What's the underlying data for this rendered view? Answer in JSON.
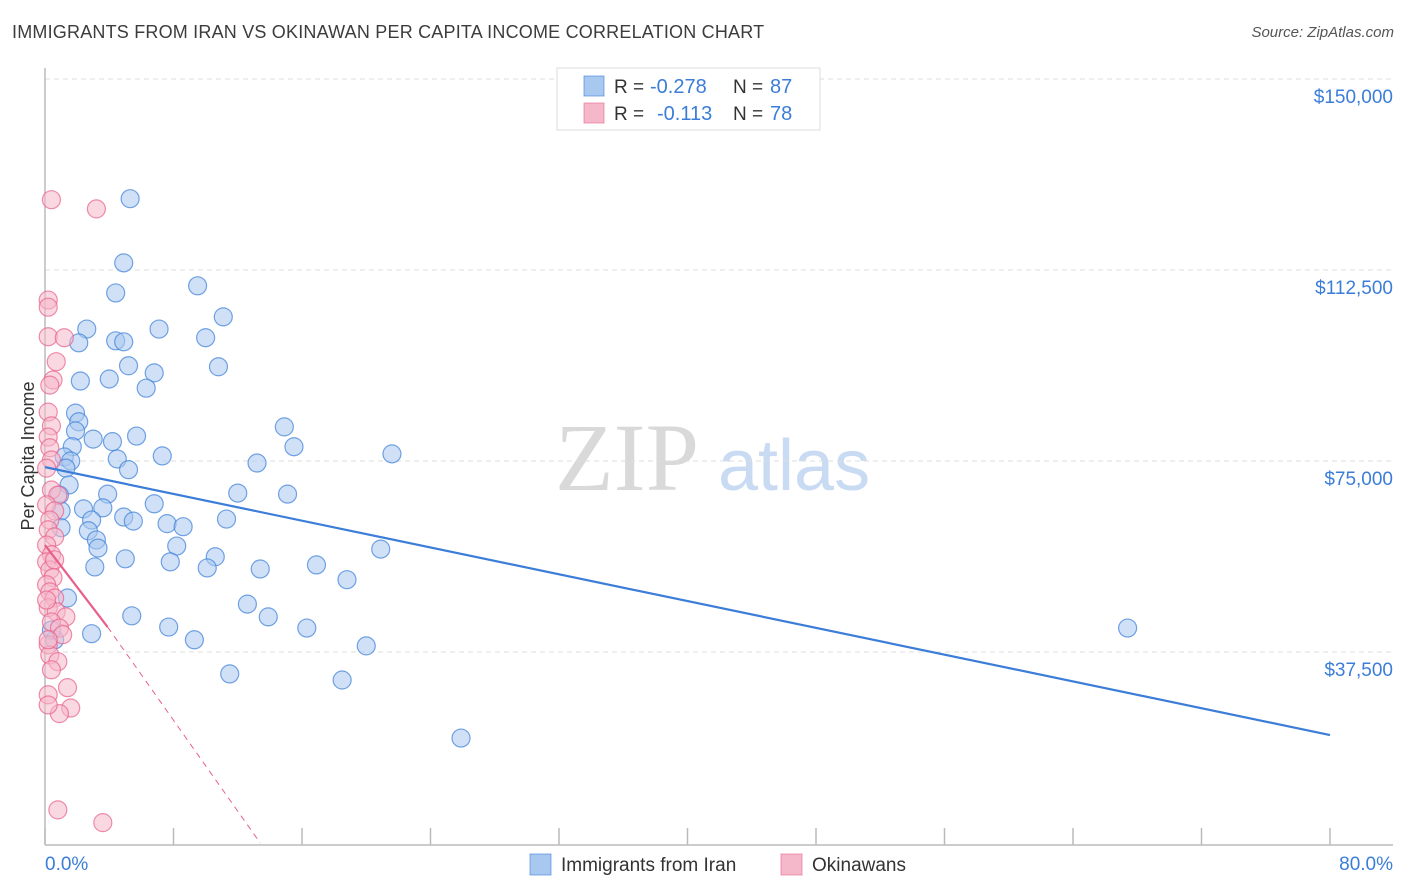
{
  "title": "IMMIGRANTS FROM IRAN VS OKINAWAN PER CAPITA INCOME CORRELATION CHART",
  "source": "Source: ZipAtlas.com",
  "watermark": "ZIPatlas",
  "chart_data": {
    "type": "scatter",
    "title": "IMMIGRANTS FROM IRAN VS OKINAWAN PER CAPITA INCOME CORRELATION CHART",
    "xlabel": "",
    "ylabel": "Per Capita Income",
    "xlim": [
      0,
      80
    ],
    "ylim": [
      0,
      152000
    ],
    "x_tick_labels": [
      "0.0%",
      "80.0%"
    ],
    "y_ticks": [
      37500,
      75000,
      112500,
      150000
    ],
    "y_tick_labels": [
      "$37,500",
      "$75,000",
      "$112,500",
      "$150,000"
    ],
    "grid": true,
    "legend_top": [
      {
        "r_label": "R =",
        "r": "-0.278",
        "n_label": "N =",
        "n": "87"
      },
      {
        "r_label": "R =",
        "r": "-0.113",
        "n_label": "N =",
        "n": "78"
      }
    ],
    "series": [
      {
        "name": "Immigrants from Iran",
        "color": "#3b7dd8",
        "fill": "#a9c8f0",
        "trend": {
          "x": [
            0,
            80
          ],
          "y": [
            73800,
            21200
          ]
        },
        "points": [
          [
            5.3,
            126500
          ],
          [
            4.9,
            113900
          ],
          [
            4.4,
            108000
          ],
          [
            9.5,
            109400
          ],
          [
            11.1,
            103300
          ],
          [
            2.6,
            100900
          ],
          [
            7.1,
            100900
          ],
          [
            10.0,
            99200
          ],
          [
            2.1,
            98200
          ],
          [
            4.4,
            98600
          ],
          [
            4.9,
            98400
          ],
          [
            5.2,
            93700
          ],
          [
            10.8,
            93500
          ],
          [
            6.8,
            92300
          ],
          [
            2.2,
            90700
          ],
          [
            4.0,
            91100
          ],
          [
            6.3,
            89300
          ],
          [
            1.9,
            84400
          ],
          [
            2.1,
            82700
          ],
          [
            1.9,
            80900
          ],
          [
            5.7,
            79900
          ],
          [
            3.0,
            79300
          ],
          [
            4.2,
            78800
          ],
          [
            1.7,
            77800
          ],
          [
            7.3,
            76000
          ],
          [
            14.9,
            81700
          ],
          [
            15.5,
            77800
          ],
          [
            21.6,
            76400
          ],
          [
            1.2,
            75800
          ],
          [
            13.2,
            74600
          ],
          [
            4.5,
            75400
          ],
          [
            1.6,
            75000
          ],
          [
            5.2,
            73300
          ],
          [
            1.3,
            73600
          ],
          [
            1.5,
            70300
          ],
          [
            3.9,
            68500
          ],
          [
            12.0,
            68700
          ],
          [
            15.1,
            68500
          ],
          [
            0.9,
            68300
          ],
          [
            6.8,
            66600
          ],
          [
            3.6,
            65800
          ],
          [
            2.4,
            65600
          ],
          [
            1.0,
            65200
          ],
          [
            4.9,
            64000
          ],
          [
            2.9,
            63400
          ],
          [
            5.5,
            63200
          ],
          [
            11.3,
            63600
          ],
          [
            7.6,
            62700
          ],
          [
            8.6,
            62100
          ],
          [
            2.7,
            61300
          ],
          [
            1.0,
            61900
          ],
          [
            3.2,
            59500
          ],
          [
            8.2,
            58300
          ],
          [
            3.3,
            57900
          ],
          [
            20.9,
            57700
          ],
          [
            10.6,
            56200
          ],
          [
            5.0,
            55800
          ],
          [
            7.8,
            55200
          ],
          [
            3.1,
            54200
          ],
          [
            10.1,
            54000
          ],
          [
            13.4,
            53800
          ],
          [
            16.9,
            54600
          ],
          [
            18.8,
            51700
          ],
          [
            1.4,
            48100
          ],
          [
            12.6,
            46900
          ],
          [
            5.4,
            44600
          ],
          [
            13.9,
            44400
          ],
          [
            7.7,
            42400
          ],
          [
            16.3,
            42200
          ],
          [
            2.9,
            41100
          ],
          [
            9.3,
            39900
          ],
          [
            20.0,
            38700
          ],
          [
            11.5,
            33200
          ],
          [
            18.5,
            32000
          ],
          [
            67.4,
            42200
          ],
          [
            25.9,
            20600
          ],
          [
            0.6,
            39900
          ],
          [
            0.4,
            41800
          ]
        ]
      },
      {
        "name": "Okinawans",
        "color": "#e8608a",
        "fill": "#f5b8cb",
        "trend": {
          "x": [
            0,
            3.9
          ],
          "y": [
            58500,
            42400
          ],
          "dashed_extension": {
            "x": [
              3.9,
              13.4
            ],
            "y": [
              42400,
              0
            ]
          }
        },
        "points": [
          [
            0.4,
            126300
          ],
          [
            3.2,
            124500
          ],
          [
            0.2,
            106600
          ],
          [
            0.2,
            105200
          ],
          [
            0.2,
            99400
          ],
          [
            1.2,
            99200
          ],
          [
            0.7,
            94500
          ],
          [
            0.5,
            90900
          ],
          [
            0.3,
            89900
          ],
          [
            0.2,
            84600
          ],
          [
            0.4,
            81900
          ],
          [
            0.2,
            79700
          ],
          [
            0.3,
            77600
          ],
          [
            0.4,
            75200
          ],
          [
            0.1,
            73600
          ],
          [
            0.4,
            69300
          ],
          [
            0.8,
            68300
          ],
          [
            0.1,
            66400
          ],
          [
            0.6,
            65200
          ],
          [
            0.3,
            63400
          ],
          [
            0.2,
            61500
          ],
          [
            0.6,
            60100
          ],
          [
            0.1,
            58500
          ],
          [
            0.4,
            56600
          ],
          [
            0.1,
            55200
          ],
          [
            0.3,
            53600
          ],
          [
            0.5,
            52100
          ],
          [
            0.1,
            50700
          ],
          [
            0.3,
            49300
          ],
          [
            0.6,
            48100
          ],
          [
            0.2,
            46200
          ],
          [
            0.7,
            45400
          ],
          [
            1.3,
            44400
          ],
          [
            0.4,
            43400
          ],
          [
            0.9,
            42200
          ],
          [
            1.1,
            40900
          ],
          [
            0.2,
            38900
          ],
          [
            0.3,
            36900
          ],
          [
            0.8,
            35600
          ],
          [
            0.4,
            34000
          ],
          [
            1.4,
            30500
          ],
          [
            0.2,
            29100
          ],
          [
            1.6,
            26500
          ],
          [
            0.9,
            25400
          ],
          [
            0.2,
            27100
          ],
          [
            0.8,
            6500
          ],
          [
            3.6,
            4000
          ],
          [
            0.6,
            55600
          ],
          [
            0.1,
            47700
          ],
          [
            0.2,
            39900
          ]
        ]
      }
    ]
  }
}
